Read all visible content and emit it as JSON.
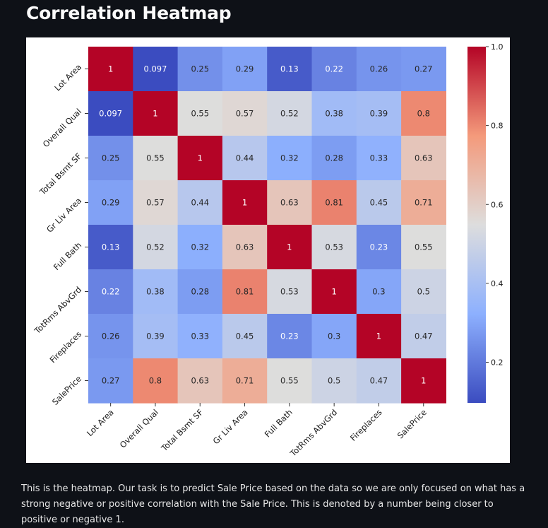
{
  "page": {
    "title": "Correlation Heatmap",
    "description": "This is the heatmap. Our task is to predict Sale Price based on the data so we are only focused on what has a strong negative or positive correlation with the Sale Price. This is denoted by a number being closer to positive or negative 1."
  },
  "chart_data": {
    "type": "heatmap",
    "title": "",
    "colormap": "coolwarm",
    "labels": [
      "Lot Area",
      "Overall Qual",
      "Total Bsmt SF",
      "Gr Liv Area",
      "Full Bath",
      "TotRms AbvGrd",
      "Fireplaces",
      "SalePrice"
    ],
    "matrix": [
      [
        1,
        0.097,
        0.25,
        0.29,
        0.13,
        0.22,
        0.26,
        0.27
      ],
      [
        0.097,
        1,
        0.55,
        0.57,
        0.52,
        0.38,
        0.39,
        0.8
      ],
      [
        0.25,
        0.55,
        1,
        0.44,
        0.32,
        0.28,
        0.33,
        0.63
      ],
      [
        0.29,
        0.57,
        0.44,
        1,
        0.63,
        0.81,
        0.45,
        0.71
      ],
      [
        0.13,
        0.52,
        0.32,
        0.63,
        1,
        0.53,
        0.23,
        0.55
      ],
      [
        0.22,
        0.38,
        0.28,
        0.81,
        0.53,
        1,
        0.3,
        0.5
      ],
      [
        0.26,
        0.39,
        0.33,
        0.45,
        0.23,
        0.3,
        1,
        0.47
      ],
      [
        0.27,
        0.8,
        0.63,
        0.71,
        0.55,
        0.5,
        0.47,
        1
      ]
    ],
    "colorbar": {
      "range": [
        0.097,
        1
      ],
      "ticks": [
        0.2,
        0.4,
        0.6,
        0.8,
        1.0
      ],
      "tick_labels": [
        "0.2",
        "0.4",
        "0.6",
        "0.8",
        "1.0"
      ]
    }
  }
}
